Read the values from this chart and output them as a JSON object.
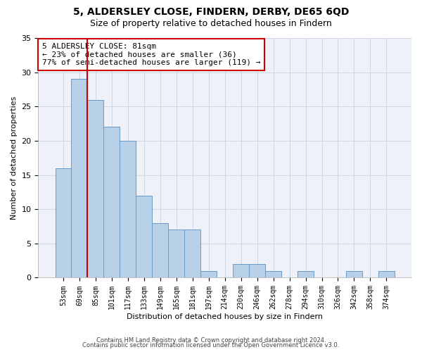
{
  "title1": "5, ALDERSLEY CLOSE, FINDERN, DERBY, DE65 6QD",
  "title2": "Size of property relative to detached houses in Findern",
  "xlabel": "Distribution of detached houses by size in Findern",
  "ylabel": "Number of detached properties",
  "categories": [
    "53sqm",
    "69sqm",
    "85sqm",
    "101sqm",
    "117sqm",
    "133sqm",
    "149sqm",
    "165sqm",
    "181sqm",
    "197sqm",
    "214sqm",
    "230sqm",
    "246sqm",
    "262sqm",
    "278sqm",
    "294sqm",
    "310sqm",
    "326sqm",
    "342sqm",
    "358sqm",
    "374sqm"
  ],
  "values": [
    16,
    29,
    26,
    22,
    20,
    12,
    8,
    7,
    7,
    1,
    0,
    2,
    2,
    1,
    0,
    1,
    0,
    0,
    1,
    0,
    1
  ],
  "bar_color": "#b8cfe8",
  "bar_edge_color": "#6699cc",
  "vline_x_idx": 1,
  "vline_color": "#cc0000",
  "annotation_line1": "5 ALDERSLEY CLOSE: 81sqm",
  "annotation_line2": "← 23% of detached houses are smaller (36)",
  "annotation_line3": "77% of semi-detached houses are larger (119) →",
  "annotation_box_color": "#ffffff",
  "annotation_box_edge": "#cc0000",
  "ylim": [
    0,
    35
  ],
  "yticks": [
    0,
    5,
    10,
    15,
    20,
    25,
    30,
    35
  ],
  "footer1": "Contains HM Land Registry data © Crown copyright and database right 2024.",
  "footer2": "Contains public sector information licensed under the Open Government Licence v3.0.",
  "bg_color": "#eef2f8",
  "grid_color": "#d0d8e8",
  "title1_fontsize": 10,
  "title2_fontsize": 9,
  "xlabel_fontsize": 8,
  "ylabel_fontsize": 8,
  "tick_fontsize": 7,
  "annotation_fontsize": 8,
  "footer_fontsize": 6
}
